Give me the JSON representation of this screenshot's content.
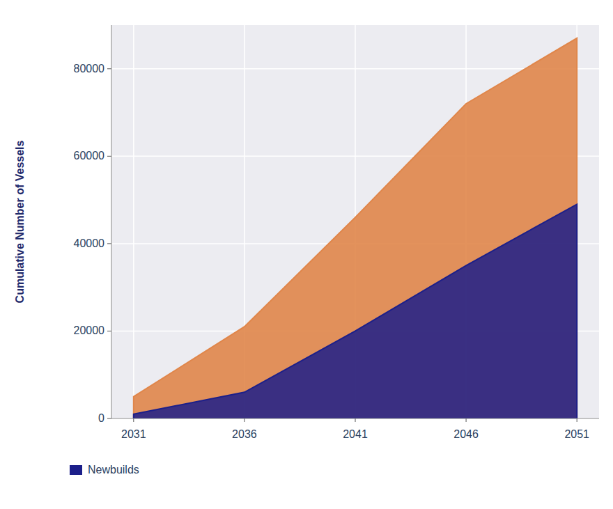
{
  "chart_data": {
    "type": "area",
    "y_label": "Cumulative Number of Vessels",
    "x": [
      2031,
      2036,
      2041,
      2046,
      2051
    ],
    "series": [
      {
        "color": "#e0864a",
        "values": [
          5000,
          21000,
          46000,
          72000,
          87000
        ]
      },
      {
        "name": "Newbuilds",
        "color": "#1c1f8a",
        "values": [
          1000,
          6000,
          20000,
          35000,
          49000
        ]
      }
    ],
    "xlim": [
      2030,
      2052
    ],
    "xticks": [
      2031,
      2036,
      2041,
      2046,
      2051
    ],
    "ylim": [
      0,
      90000
    ],
    "yticks": [
      0,
      20000,
      40000,
      60000,
      80000
    ],
    "grid": true,
    "stacked": false,
    "legend": "bottom-left"
  }
}
